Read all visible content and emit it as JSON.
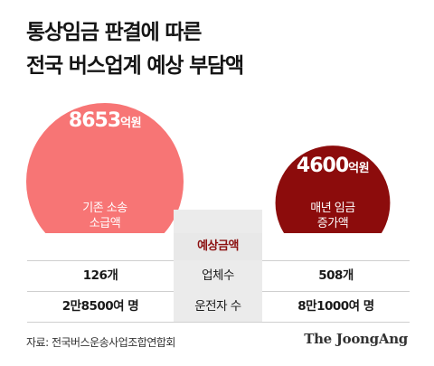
{
  "title": {
    "line1": "통상임금 판결에 따른",
    "line2": "전국 버스업계 예상 부담액"
  },
  "chart_data": {
    "type": "bubble",
    "header": "예상금액",
    "series": [
      {
        "name": "기존 소송 소급액",
        "value": 8653,
        "value_text": "8653",
        "unit": "억원",
        "label_line1": "기존 소송",
        "label_line2": "소급액",
        "color": "#f77575"
      },
      {
        "name": "매년 임금 증가액",
        "value": 4600,
        "value_text": "4600",
        "unit": "억원",
        "label_line1": "매년 임금",
        "label_line2": "증가액",
        "color": "#8c0c0c"
      }
    ],
    "table": [
      {
        "label": "업체수",
        "left": "126개",
        "right": "508개"
      },
      {
        "label": "운전자 수",
        "left": "2만8500여 명",
        "right": "8만1000여 명"
      }
    ]
  },
  "footer": {
    "source": "자료: 전국버스운송사업조합연합회",
    "brand": "The JoongAng"
  }
}
